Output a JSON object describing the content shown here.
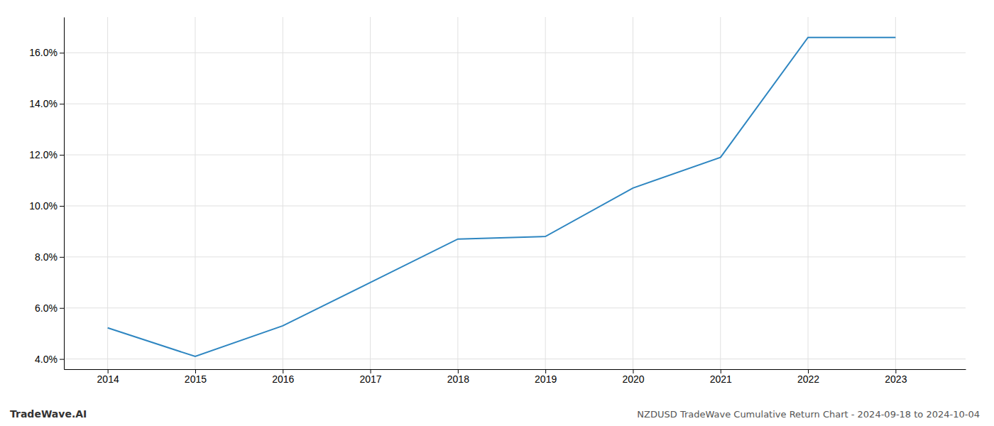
{
  "chart_data": {
    "type": "line",
    "title": "NZDUSD TradeWave Cumulative Return Chart - 2024-09-18 to 2024-10-04",
    "annotations": [
      "TradeWave.AI"
    ],
    "x": [
      2014,
      2015,
      2016,
      2017,
      2018,
      2019,
      2020,
      2021,
      2022,
      2023
    ],
    "values": [
      5.22,
      4.1,
      5.3,
      7.0,
      8.7,
      8.8,
      10.7,
      11.9,
      16.6,
      16.6
    ],
    "color": "#2e86c1",
    "xlim": [
      2013.5,
      2023.8
    ],
    "xticks": [
      2014,
      2015,
      2016,
      2017,
      2018,
      2019,
      2020,
      2021,
      2022,
      2023
    ],
    "ylim": [
      3.6,
      17.4
    ],
    "yticks": [
      {
        "value": 4.0,
        "label": "4.0%"
      },
      {
        "value": 6.0,
        "label": "6.0%"
      },
      {
        "value": 8.0,
        "label": "8.0%"
      },
      {
        "value": 10.0,
        "label": "10.0%"
      },
      {
        "value": 12.0,
        "label": "12.0%"
      },
      {
        "value": 14.0,
        "label": "14.0%"
      },
      {
        "value": 16.0,
        "label": "16.0%"
      }
    ],
    "grid": true
  }
}
